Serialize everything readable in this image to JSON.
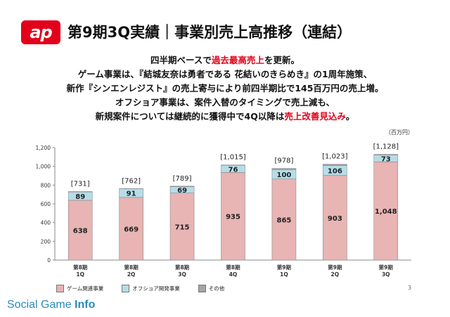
{
  "header": {
    "logo_text": "ap",
    "title": "第9期3Q実績｜事業別売上高推移（連結）"
  },
  "summary": {
    "line1_a": "四半期ベースで",
    "line1_hl": "過去最高売上",
    "line1_b": "を更新。",
    "line2": "ゲーム事業は、『結城友奈は勇者である 花結いのきらめき』の1周年施策、",
    "line3": "新作『シンエンレジスト』の売上寄与により前四半期比で145百万円の売上増。",
    "line4": "オフショア事業は、案件入替のタイミングで売上減も、",
    "line5_a": "新規案件については継続的に獲得中で4Q以降は",
    "line5_hl": "売上改善見込み",
    "line5_b": "。"
  },
  "unit_label": "（百万円）",
  "colors": {
    "game": "#e8b4b4",
    "offshore": "#b5dde8",
    "other": "#a6a6a6",
    "accent": "#e2001a",
    "footer": "#2a8ab8"
  },
  "chart_data": {
    "type": "bar",
    "stacked": true,
    "categories": [
      "第8期\n1Q",
      "第8期\n2Q",
      "第8期\n3Q",
      "第8期\n4Q",
      "第9期\n1Q",
      "第9期\n2Q",
      "第9期\n3Q"
    ],
    "series": [
      {
        "name": "ゲーム関連事業",
        "values": [
          638,
          669,
          715,
          935,
          865,
          903,
          1048
        ],
        "labels": [
          "638",
          "669",
          "715",
          "935",
          "865",
          "903",
          "1,048"
        ]
      },
      {
        "name": "オフショア開発事業",
        "values": [
          89,
          91,
          69,
          76,
          100,
          106,
          73
        ],
        "labels": [
          "89",
          "91",
          "69",
          "76",
          "100",
          "106",
          "73"
        ]
      },
      {
        "name": "その他",
        "values": [
          4,
          2,
          5,
          4,
          13,
          14,
          7
        ]
      }
    ],
    "totals": [
      "[731]",
      "[762]",
      "[789]",
      "[1,015]",
      "[978]",
      "[1,023]",
      "[1,128]"
    ],
    "total_values": [
      731,
      762,
      789,
      1015,
      978,
      1023,
      1128
    ],
    "ylim": [
      0,
      1200
    ],
    "yticks": [
      0,
      200,
      400,
      600,
      800,
      1000,
      1200
    ],
    "ytick_labels": [
      "0",
      "200",
      "400",
      "600",
      "800",
      "1,000",
      "1,200"
    ],
    "grid": false,
    "legend_position": "bottom-left"
  },
  "page_number": "3",
  "footer": {
    "brand_a": "Social Game ",
    "brand_b": "Info"
  }
}
